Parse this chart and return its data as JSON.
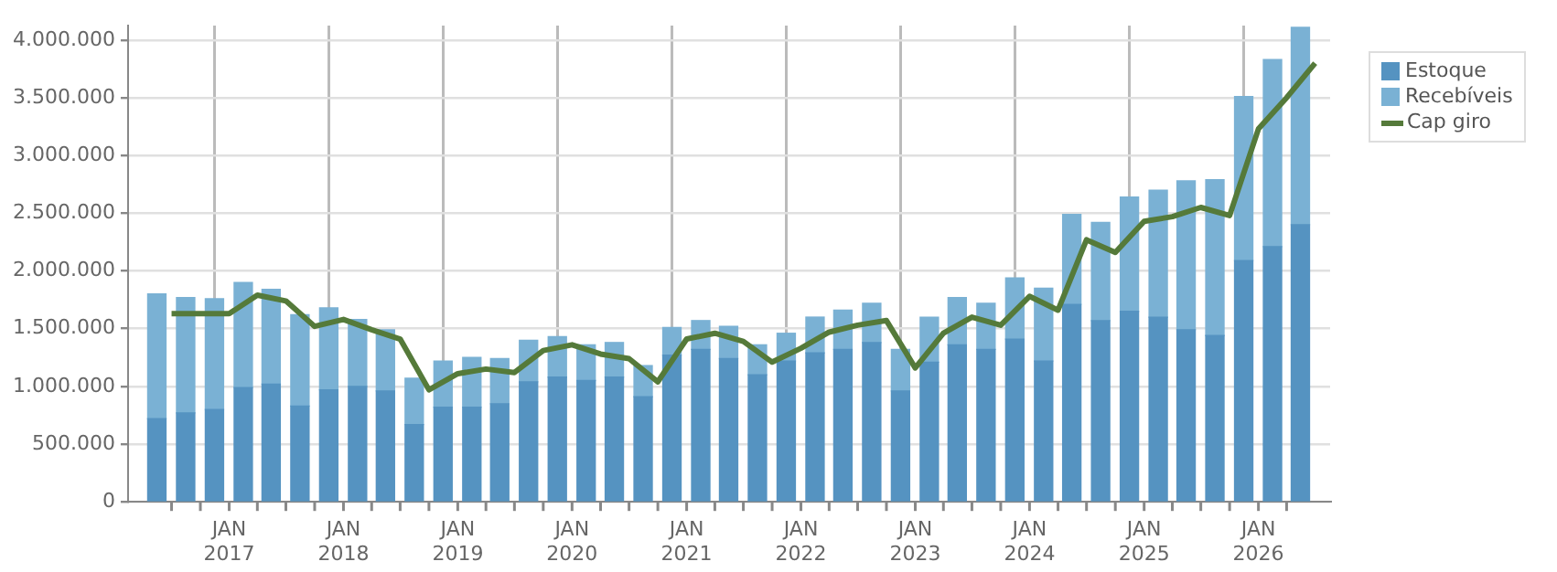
{
  "chart_data": {
    "type": "bar",
    "stacked": true,
    "grid": true,
    "legend": "top right",
    "marker": "none",
    "x": [
      "2016-05-15",
      "2016-08-15",
      "2016-11-15",
      "2017-02-15",
      "2017-05-15",
      "2017-08-15",
      "2017-11-15",
      "2018-02-15",
      "2018-05-15",
      "2018-08-15",
      "2018-11-15",
      "2019-02-15",
      "2019-05-15",
      "2019-08-15",
      "2019-11-15",
      "2020-02-15",
      "2020-05-15",
      "2020-08-15",
      "2020-11-15",
      "2021-02-15",
      "2021-05-15",
      "2021-08-15",
      "2021-11-15",
      "2022-02-15",
      "2022-05-15",
      "2022-08-15",
      "2022-11-15",
      "2023-02-15",
      "2023-05-15",
      "2023-08-15",
      "2023-11-15",
      "2024-02-15",
      "2024-05-15",
      "2024-08-15",
      "2024-11-15",
      "2025-02-15",
      "2025-05-15",
      "2025-08-15",
      "2025-11-15",
      "2026-02-15",
      "2026-05-15"
    ],
    "series": [
      {
        "name": "Estoque",
        "color": "#5593c1",
        "values": [
          720000,
          770000,
          800000,
          990000,
          1020000,
          830000,
          970000,
          1000000,
          960000,
          670000,
          820000,
          820000,
          850000,
          1040000,
          1080000,
          1050000,
          1080000,
          910000,
          1270000,
          1320000,
          1240000,
          1100000,
          1220000,
          1290000,
          1320000,
          1380000,
          960000,
          1210000,
          1360000,
          1320000,
          1410000,
          1220000,
          1710000,
          1570000,
          1650000,
          1600000,
          1490000,
          1440000,
          2090000,
          2210000,
          2400000
        ]
      },
      {
        "name": "Recebíveis",
        "color": "#7ab1d4",
        "values": [
          1080000,
          1000000,
          960000,
          910000,
          820000,
          790000,
          710000,
          580000,
          530000,
          400000,
          400000,
          430000,
          390000,
          360000,
          350000,
          310000,
          300000,
          270000,
          240000,
          250000,
          280000,
          260000,
          240000,
          310000,
          340000,
          340000,
          360000,
          390000,
          410000,
          400000,
          530000,
          630000,
          780000,
          850000,
          990000,
          1100000,
          1290000,
          1350000,
          1420000,
          1620000,
          1710000
        ]
      },
      {
        "name": "Cap giro",
        "type": "line",
        "color": "#557a3a",
        "x": [
          "2016-07",
          "2016-10",
          "2017-01",
          "2017-04",
          "2017-07",
          "2017-10",
          "2018-01",
          "2018-04",
          "2018-07",
          "2018-10",
          "2019-01",
          "2019-04",
          "2019-07",
          "2019-10",
          "2020-01",
          "2020-04",
          "2020-07",
          "2020-10",
          "2021-01",
          "2021-04",
          "2021-07",
          "2021-10",
          "2022-01",
          "2022-04",
          "2022-07",
          "2022-10",
          "2023-01",
          "2023-04",
          "2023-07",
          "2023-10",
          "2024-01",
          "2024-04",
          "2024-07",
          "2024-10",
          "2025-01",
          "2025-04",
          "2025-07",
          "2025-10",
          "2026-01",
          "2026-04",
          "2026-07"
        ],
        "values": [
          1630000,
          1630000,
          1630000,
          1790000,
          1740000,
          1520000,
          1580000,
          1490000,
          1410000,
          970000,
          1110000,
          1150000,
          1120000,
          1310000,
          1360000,
          1280000,
          1240000,
          1040000,
          1410000,
          1460000,
          1390000,
          1210000,
          1330000,
          1470000,
          1530000,
          1570000,
          1160000,
          1460000,
          1600000,
          1530000,
          1780000,
          1660000,
          2270000,
          2160000,
          2430000,
          2470000,
          2550000,
          2480000,
          3230000,
          3500000,
          3800000
        ]
      }
    ],
    "xlim": [
      "2016-04",
      "2026-07"
    ],
    "xticks": [
      {
        "value": "2016-07",
        "label": null
      },
      {
        "value": "2016-10",
        "label": null
      },
      {
        "value": "2017-01",
        "label": "JAN 2017"
      },
      {
        "value": "2017-04",
        "label": null
      },
      {
        "value": "2017-07",
        "label": null
      },
      {
        "value": "2017-10",
        "label": null
      },
      {
        "value": "2018-01",
        "label": "JAN 2018"
      },
      {
        "value": "2018-04",
        "label": null
      },
      {
        "value": "2018-07",
        "label": null
      },
      {
        "value": "2018-10",
        "label": null
      },
      {
        "value": "2019-01",
        "label": "JAN 2019"
      },
      {
        "value": "2019-04",
        "label": null
      },
      {
        "value": "2019-07",
        "label": null
      },
      {
        "value": "2019-10",
        "label": null
      },
      {
        "value": "2020-01",
        "label": "JAN 2020"
      },
      {
        "value": "2020-04",
        "label": null
      },
      {
        "value": "2020-07",
        "label": null
      },
      {
        "value": "2020-10",
        "label": null
      },
      {
        "value": "2021-01",
        "label": "JAN 2021"
      },
      {
        "value": "2021-04",
        "label": null
      },
      {
        "value": "2021-07",
        "label": null
      },
      {
        "value": "2021-10",
        "label": null
      },
      {
        "value": "2022-01",
        "label": "JAN 2022"
      },
      {
        "value": "2022-04",
        "label": null
      },
      {
        "value": "2022-07",
        "label": null
      },
      {
        "value": "2022-10",
        "label": null
      },
      {
        "value": "2023-01",
        "label": "JAN 2023"
      },
      {
        "value": "2023-04",
        "label": null
      },
      {
        "value": "2023-07",
        "label": null
      },
      {
        "value": "2023-10",
        "label": null
      },
      {
        "value": "2024-01",
        "label": "JAN 2024"
      },
      {
        "value": "2024-04",
        "label": null
      },
      {
        "value": "2024-07",
        "label": null
      },
      {
        "value": "2024-10",
        "label": null
      },
      {
        "value": "2025-01",
        "label": "JAN 2025"
      },
      {
        "value": "2025-04",
        "label": null
      },
      {
        "value": "2025-07",
        "label": null
      },
      {
        "value": "2025-10",
        "label": null
      },
      {
        "value": "2026-01",
        "label": "JAN 2026"
      },
      {
        "value": "2026-04",
        "label": null
      }
    ],
    "ylim": [
      0,
      4125000
    ],
    "yticks": [
      {
        "value": 0,
        "label": "0"
      },
      {
        "value": 500000,
        "label": "500.000"
      },
      {
        "value": 1000000,
        "label": "1.000.000"
      },
      {
        "value": 1500000,
        "label": "1.500.000"
      },
      {
        "value": 2000000,
        "label": "2.000.000"
      },
      {
        "value": 2500000,
        "label": "2.500.000"
      },
      {
        "value": 3000000,
        "label": "3.000.000"
      },
      {
        "value": 3500000,
        "label": "3.500.000"
      },
      {
        "value": 4000000,
        "label": "4.000.000"
      }
    ]
  }
}
